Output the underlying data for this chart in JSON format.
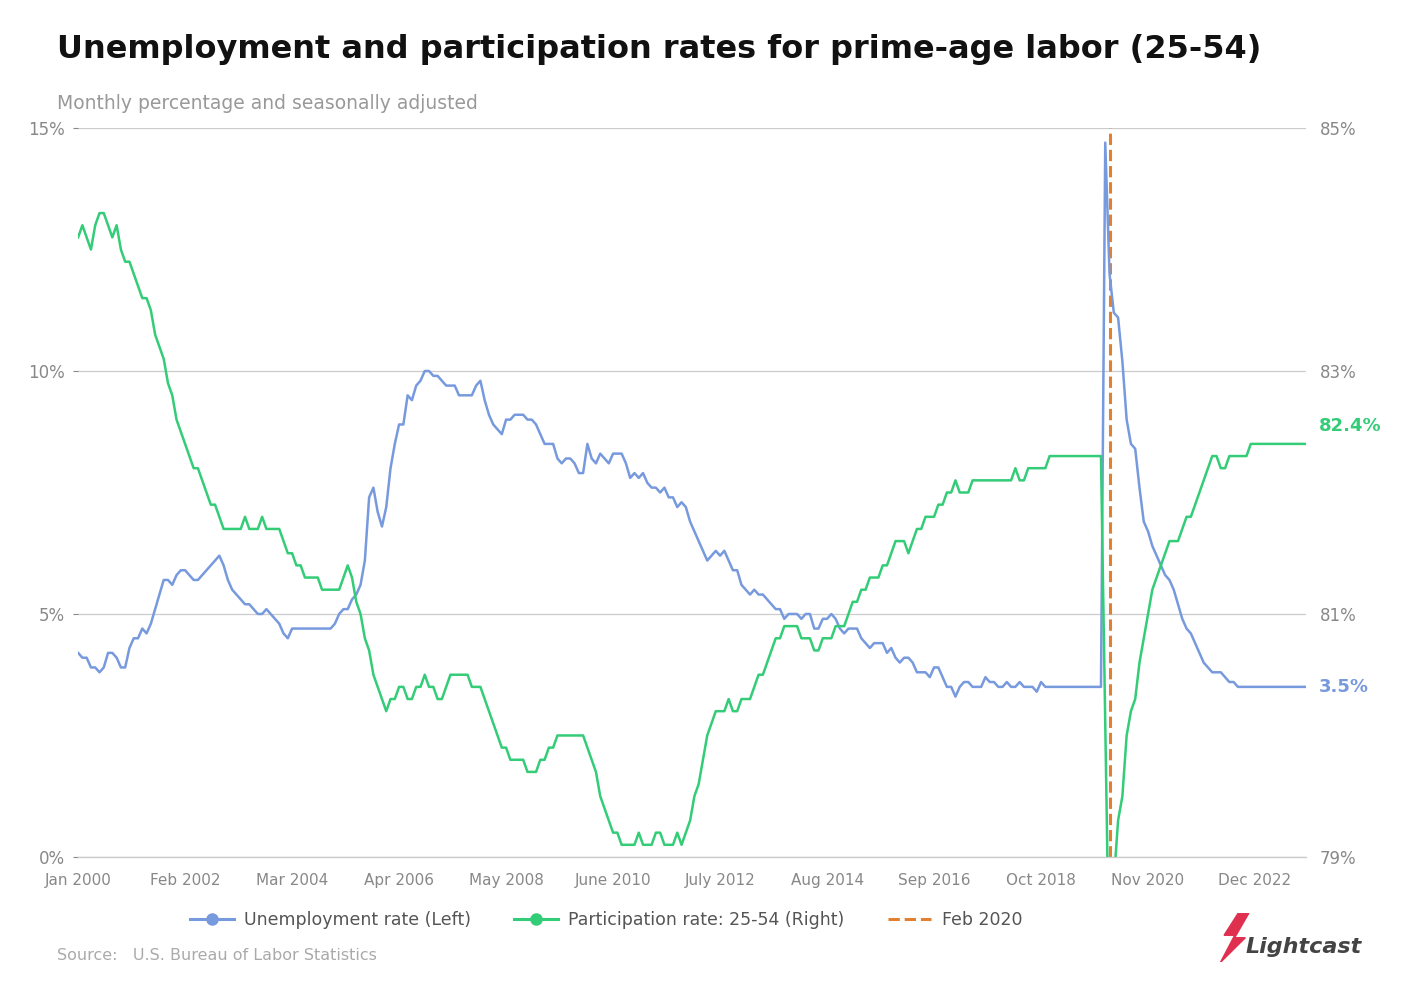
{
  "title": "Unemployment and participation rates for prime-age labor (25-54)",
  "subtitle": "Monthly percentage and seasonally adjusted",
  "source": "Source:   U.S. Bureau of Labor Statistics",
  "unemp_label": "3.5%",
  "part_label": "82.4%",
  "vline_label": "Feb 2020",
  "legend_unemp": "Unemployment rate (Left)",
  "legend_part": "Participation rate: 25-54 (Right)",
  "unemp_color": "#7799dd",
  "part_color": "#33cc77",
  "vline_color": "#e08030",
  "bg_color": "#ffffff",
  "grid_color": "#cccccc",
  "title_color": "#111111",
  "subtitle_color": "#999999",
  "source_color": "#aaaaaa",
  "label_color_unemp": "#7799dd",
  "label_color_part": "#33cc77",
  "yleft_min": 0,
  "yleft_max": 15,
  "yright_min": 79,
  "yright_max": 85,
  "yticks_left": [
    0,
    5,
    10,
    15
  ],
  "yticks_right": [
    79,
    81,
    83,
    85
  ],
  "xtick_labels": [
    "Jan 2000",
    "Feb 2002",
    "Mar 2004",
    "Apr 2006",
    "May 2008",
    "June 2010",
    "July 2012",
    "Aug 2014",
    "Sep 2016",
    "Oct 2018",
    "Nov 2020",
    "Dec 2022"
  ],
  "unemp_data": [
    4.2,
    4.1,
    4.1,
    3.9,
    3.9,
    3.8,
    3.9,
    4.2,
    4.2,
    4.1,
    3.9,
    3.9,
    4.3,
    4.5,
    4.5,
    4.7,
    4.6,
    4.8,
    5.1,
    5.4,
    5.7,
    5.7,
    5.6,
    5.8,
    5.9,
    5.9,
    5.8,
    5.7,
    5.7,
    5.8,
    5.9,
    6.0,
    6.1,
    6.2,
    6.0,
    5.7,
    5.5,
    5.4,
    5.3,
    5.2,
    5.2,
    5.1,
    5.0,
    5.0,
    5.1,
    5.0,
    4.9,
    4.8,
    4.6,
    4.5,
    4.7,
    4.7,
    4.7,
    4.7,
    4.7,
    4.7,
    4.7,
    4.7,
    4.7,
    4.7,
    4.8,
    5.0,
    5.1,
    5.1,
    5.3,
    5.4,
    5.6,
    6.1,
    7.4,
    7.6,
    7.1,
    6.8,
    7.2,
    8.0,
    8.5,
    8.9,
    8.9,
    9.5,
    9.4,
    9.7,
    9.8,
    10.0,
    10.0,
    9.9,
    9.9,
    9.8,
    9.7,
    9.7,
    9.7,
    9.5,
    9.5,
    9.5,
    9.5,
    9.7,
    9.8,
    9.4,
    9.1,
    8.9,
    8.8,
    8.7,
    9.0,
    9.0,
    9.1,
    9.1,
    9.1,
    9.0,
    9.0,
    8.9,
    8.7,
    8.5,
    8.5,
    8.5,
    8.2,
    8.1,
    8.2,
    8.2,
    8.1,
    7.9,
    7.9,
    8.5,
    8.2,
    8.1,
    8.3,
    8.2,
    8.1,
    8.3,
    8.3,
    8.3,
    8.1,
    7.8,
    7.9,
    7.8,
    7.9,
    7.7,
    7.6,
    7.6,
    7.5,
    7.6,
    7.4,
    7.4,
    7.2,
    7.3,
    7.2,
    6.9,
    6.7,
    6.5,
    6.3,
    6.1,
    6.2,
    6.3,
    6.2,
    6.3,
    6.1,
    5.9,
    5.9,
    5.6,
    5.5,
    5.4,
    5.5,
    5.4,
    5.4,
    5.3,
    5.2,
    5.1,
    5.1,
    4.9,
    5.0,
    5.0,
    5.0,
    4.9,
    5.0,
    5.0,
    4.7,
    4.7,
    4.9,
    4.9,
    5.0,
    4.9,
    4.7,
    4.6,
    4.7,
    4.7,
    4.7,
    4.5,
    4.4,
    4.3,
    4.4,
    4.4,
    4.4,
    4.2,
    4.3,
    4.1,
    4.0,
    4.1,
    4.1,
    4.0,
    3.8,
    3.8,
    3.8,
    3.7,
    3.9,
    3.9,
    3.7,
    3.5,
    3.5,
    3.3,
    3.5,
    3.6,
    3.6,
    3.5,
    3.5,
    3.5,
    3.7,
    3.6,
    3.6,
    3.5,
    3.5,
    3.6,
    3.5,
    3.5,
    3.6,
    3.5,
    3.5,
    3.5,
    3.4,
    3.6,
    3.5,
    3.5,
    3.5,
    3.5,
    3.5,
    3.5,
    3.5,
    3.5,
    3.5,
    3.5,
    3.5,
    3.5,
    3.5,
    3.5,
    14.7,
    12.0,
    11.2,
    11.1,
    10.2,
    9.0,
    8.5,
    8.4,
    7.6,
    6.9,
    6.7,
    6.4,
    6.2,
    6.0,
    5.8,
    5.7,
    5.5,
    5.2,
    4.9,
    4.7,
    4.6,
    4.4,
    4.2,
    4.0,
    3.9,
    3.8,
    3.8,
    3.8,
    3.7,
    3.6,
    3.6,
    3.5,
    3.5,
    3.5,
    3.5,
    3.5,
    3.5,
    3.5,
    3.5,
    3.5,
    3.5,
    3.5,
    3.5,
    3.5,
    3.5,
    3.5,
    3.5,
    3.5
  ],
  "part_data": [
    84.1,
    84.2,
    84.1,
    84.0,
    84.2,
    84.3,
    84.3,
    84.2,
    84.1,
    84.2,
    84.0,
    83.9,
    83.9,
    83.8,
    83.7,
    83.6,
    83.6,
    83.5,
    83.3,
    83.2,
    83.1,
    82.9,
    82.8,
    82.6,
    82.5,
    82.4,
    82.3,
    82.2,
    82.2,
    82.1,
    82.0,
    81.9,
    81.9,
    81.8,
    81.7,
    81.7,
    81.7,
    81.7,
    81.7,
    81.8,
    81.7,
    81.7,
    81.7,
    81.8,
    81.7,
    81.7,
    81.7,
    81.7,
    81.6,
    81.5,
    81.5,
    81.4,
    81.4,
    81.3,
    81.3,
    81.3,
    81.3,
    81.2,
    81.2,
    81.2,
    81.2,
    81.2,
    81.3,
    81.4,
    81.3,
    81.1,
    81.0,
    80.8,
    80.7,
    80.5,
    80.4,
    80.3,
    80.2,
    80.3,
    80.3,
    80.4,
    80.4,
    80.3,
    80.3,
    80.4,
    80.4,
    80.5,
    80.4,
    80.4,
    80.3,
    80.3,
    80.4,
    80.5,
    80.5,
    80.5,
    80.5,
    80.5,
    80.4,
    80.4,
    80.4,
    80.3,
    80.2,
    80.1,
    80.0,
    79.9,
    79.9,
    79.8,
    79.8,
    79.8,
    79.8,
    79.7,
    79.7,
    79.7,
    79.8,
    79.8,
    79.9,
    79.9,
    80.0,
    80.0,
    80.0,
    80.0,
    80.0,
    80.0,
    80.0,
    79.9,
    79.8,
    79.7,
    79.5,
    79.4,
    79.3,
    79.2,
    79.2,
    79.1,
    79.1,
    79.1,
    79.1,
    79.2,
    79.1,
    79.1,
    79.1,
    79.2,
    79.2,
    79.1,
    79.1,
    79.1,
    79.2,
    79.1,
    79.2,
    79.3,
    79.5,
    79.6,
    79.8,
    80.0,
    80.1,
    80.2,
    80.2,
    80.2,
    80.3,
    80.2,
    80.2,
    80.3,
    80.3,
    80.3,
    80.4,
    80.5,
    80.5,
    80.6,
    80.7,
    80.8,
    80.8,
    80.9,
    80.9,
    80.9,
    80.9,
    80.8,
    80.8,
    80.8,
    80.7,
    80.7,
    80.8,
    80.8,
    80.8,
    80.9,
    80.9,
    80.9,
    81.0,
    81.1,
    81.1,
    81.2,
    81.2,
    81.3,
    81.3,
    81.3,
    81.4,
    81.4,
    81.5,
    81.6,
    81.6,
    81.6,
    81.5,
    81.6,
    81.7,
    81.7,
    81.8,
    81.8,
    81.8,
    81.9,
    81.9,
    82.0,
    82.0,
    82.1,
    82.0,
    82.0,
    82.0,
    82.1,
    82.1,
    82.1,
    82.1,
    82.1,
    82.1,
    82.1,
    82.1,
    82.1,
    82.1,
    82.2,
    82.1,
    82.1,
    82.2,
    82.2,
    82.2,
    82.2,
    82.2,
    82.3,
    82.3,
    82.3,
    82.3,
    82.3,
    82.3,
    82.3,
    82.3,
    82.3,
    82.3,
    82.3,
    82.3,
    82.3,
    80.1,
    77.9,
    78.8,
    79.3,
    79.5,
    80.0,
    80.2,
    80.3,
    80.6,
    80.8,
    81.0,
    81.2,
    81.3,
    81.4,
    81.5,
    81.6,
    81.6,
    81.6,
    81.7,
    81.8,
    81.8,
    81.9,
    82.0,
    82.1,
    82.2,
    82.3,
    82.3,
    82.2,
    82.2,
    82.3,
    82.3,
    82.3,
    82.3,
    82.3,
    82.4,
    82.4,
    82.4,
    82.4,
    82.4,
    82.4,
    82.4,
    82.4,
    82.4,
    82.4,
    82.4,
    82.4,
    82.4,
    82.4
  ]
}
